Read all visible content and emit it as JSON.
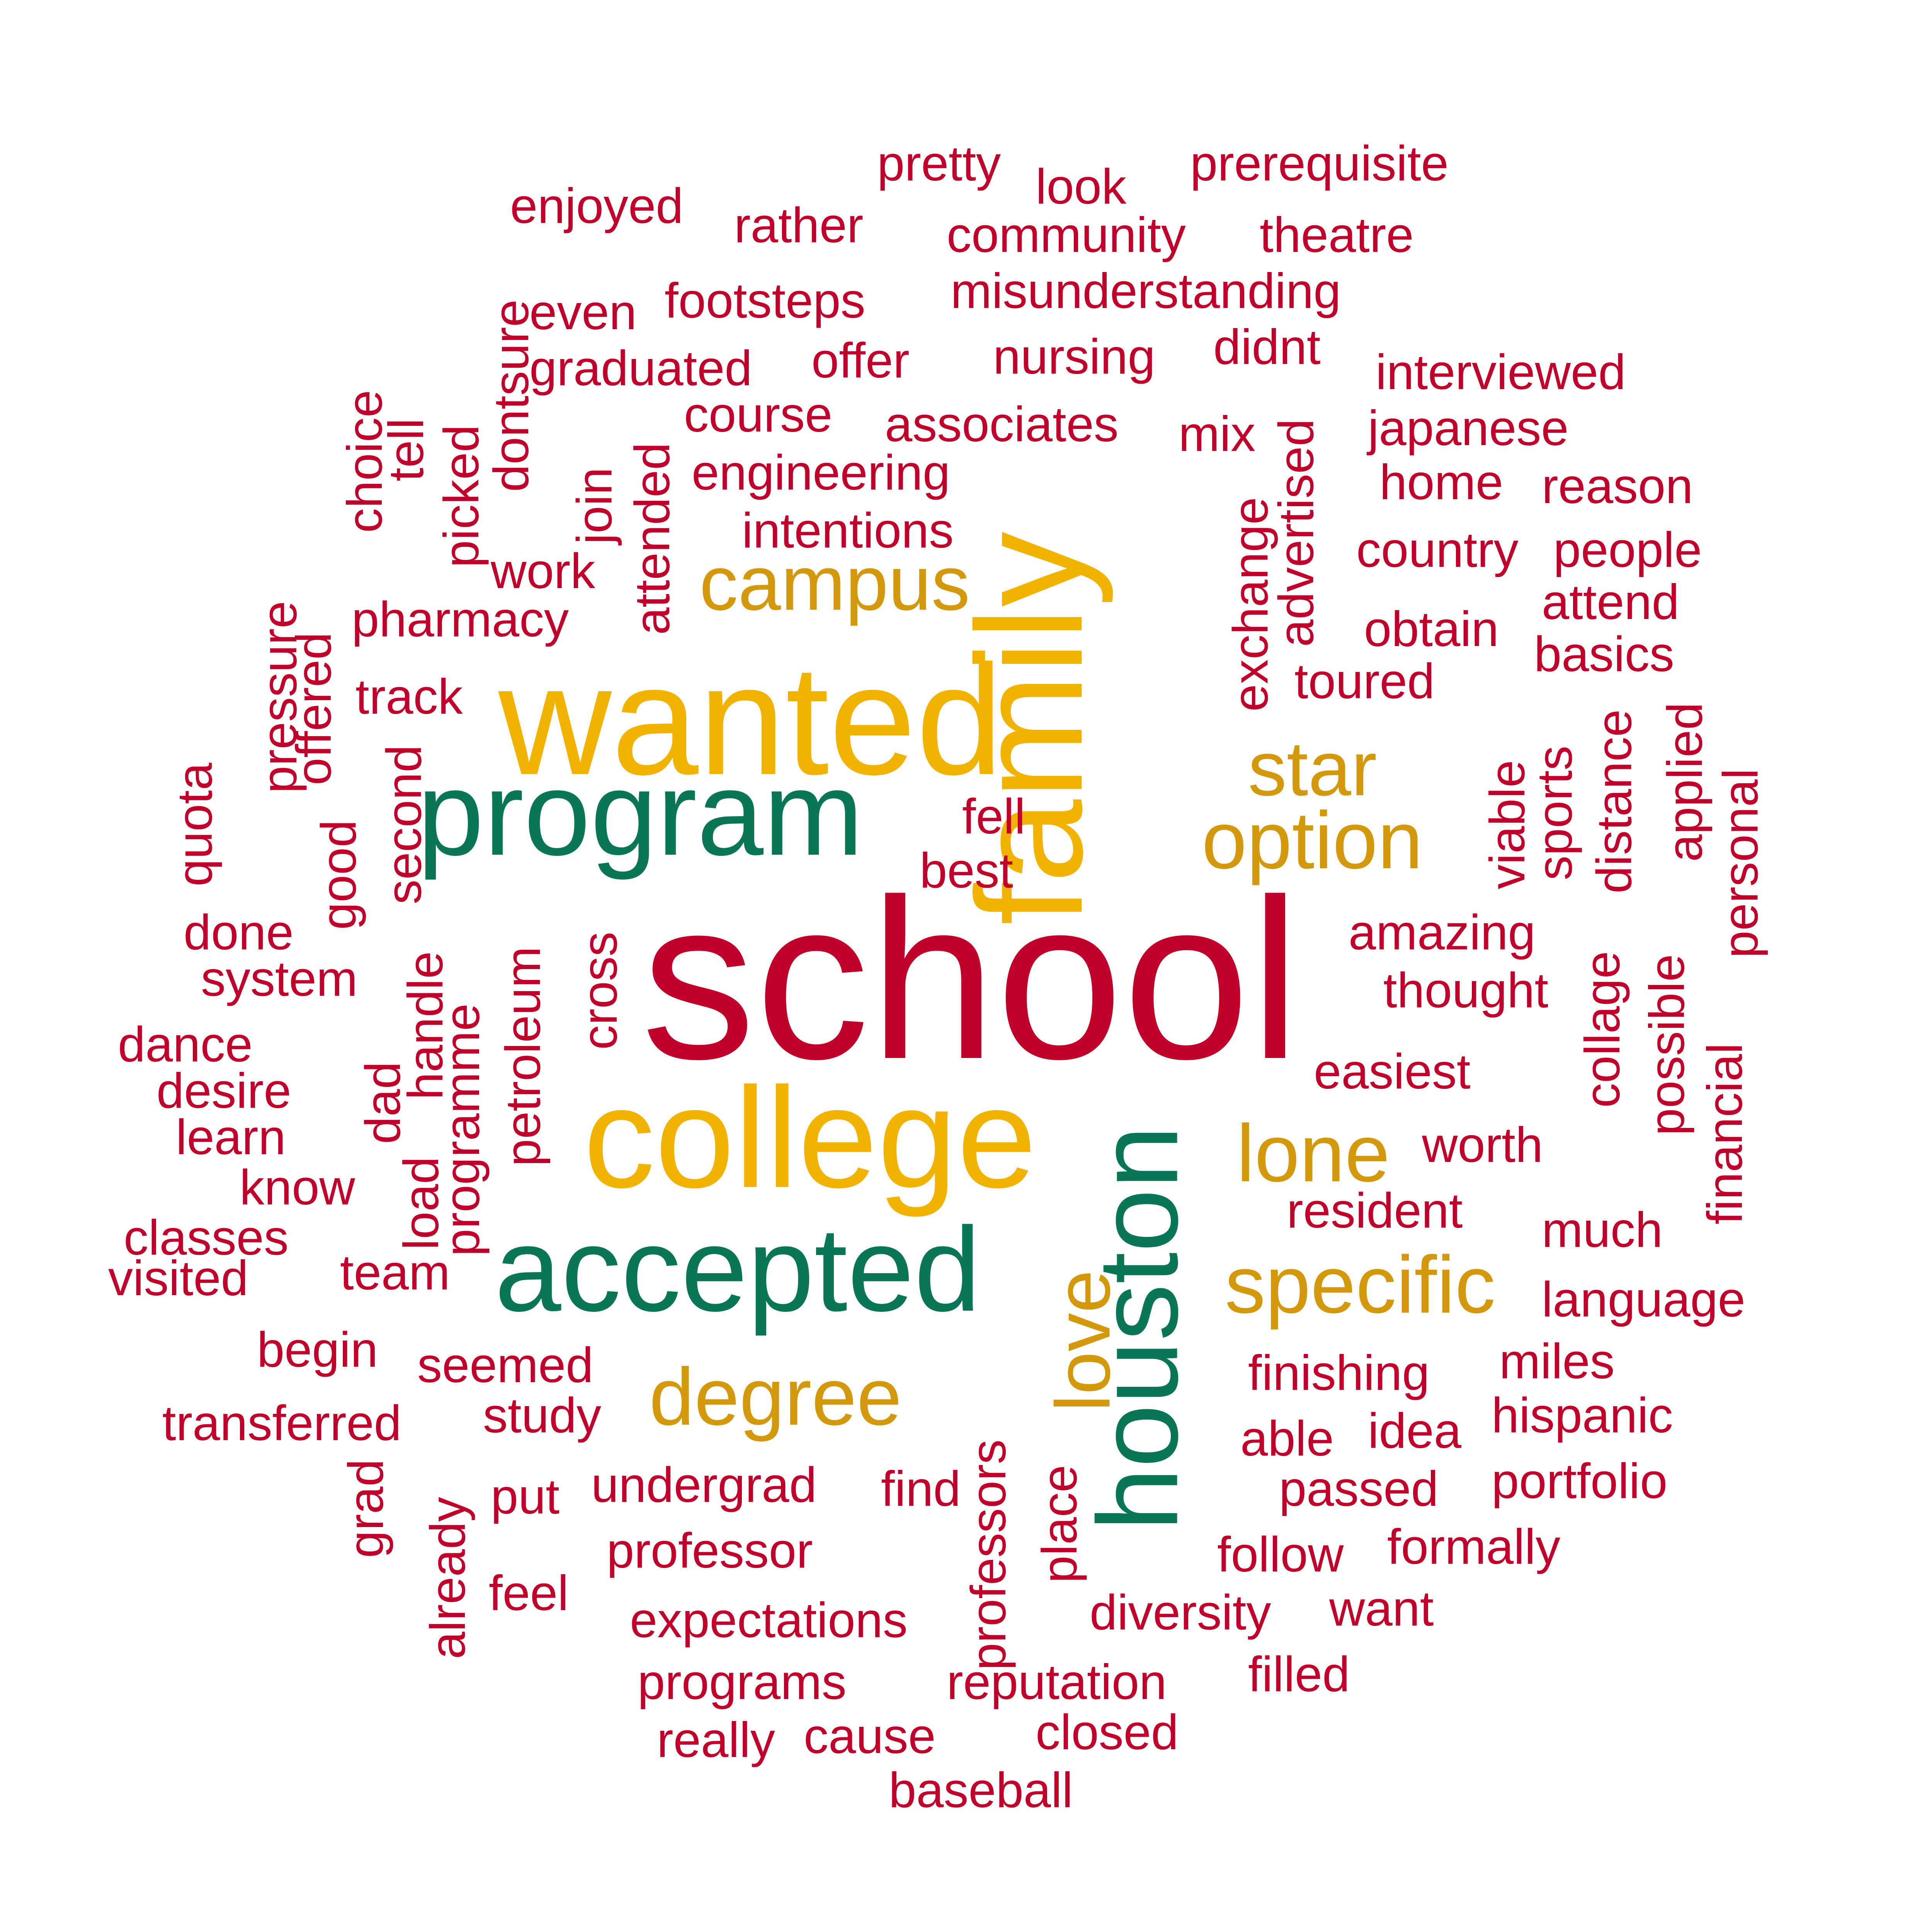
{
  "palette": {
    "red": "#c0002b",
    "yellow": "#f2b300",
    "green": "#0a7657",
    "gold": "#d3980b",
    "background": "#ffffff"
  },
  "words": [
    {
      "text": "school",
      "color": "red",
      "orientation": "horizontal"
    },
    {
      "text": "wanted",
      "color": "yellow",
      "orientation": "horizontal"
    },
    {
      "text": "college",
      "color": "yellow",
      "orientation": "horizontal"
    },
    {
      "text": "family",
      "color": "yellow",
      "orientation": "vertical"
    },
    {
      "text": "program",
      "color": "green",
      "orientation": "horizontal"
    },
    {
      "text": "accepted",
      "color": "green",
      "orientation": "horizontal"
    },
    {
      "text": "houston",
      "color": "green",
      "orientation": "vertical"
    },
    {
      "text": "campus",
      "color": "gold",
      "orientation": "horizontal"
    },
    {
      "text": "star",
      "color": "gold",
      "orientation": "horizontal"
    },
    {
      "text": "option",
      "color": "gold",
      "orientation": "horizontal"
    },
    {
      "text": "lone",
      "color": "gold",
      "orientation": "horizontal"
    },
    {
      "text": "specific",
      "color": "gold",
      "orientation": "horizontal"
    },
    {
      "text": "degree",
      "color": "gold",
      "orientation": "horizontal"
    },
    {
      "text": "love",
      "color": "gold",
      "orientation": "vertical"
    },
    {
      "text": "pretty",
      "color": "red",
      "orientation": "horizontal"
    },
    {
      "text": "look",
      "color": "red",
      "orientation": "horizontal"
    },
    {
      "text": "prerequisite",
      "color": "red",
      "orientation": "horizontal"
    },
    {
      "text": "enjoyed",
      "color": "red",
      "orientation": "horizontal"
    },
    {
      "text": "rather",
      "color": "red",
      "orientation": "horizontal"
    },
    {
      "text": "community",
      "color": "red",
      "orientation": "horizontal"
    },
    {
      "text": "theatre",
      "color": "red",
      "orientation": "horizontal"
    },
    {
      "text": "even",
      "color": "red",
      "orientation": "horizontal"
    },
    {
      "text": "footsteps",
      "color": "red",
      "orientation": "horizontal"
    },
    {
      "text": "misunderstanding",
      "color": "red",
      "orientation": "horizontal"
    },
    {
      "text": "dontsure",
      "color": "red",
      "orientation": "vertical"
    },
    {
      "text": "graduated",
      "color": "red",
      "orientation": "horizontal"
    },
    {
      "text": "offer",
      "color": "red",
      "orientation": "horizontal"
    },
    {
      "text": "nursing",
      "color": "red",
      "orientation": "horizontal"
    },
    {
      "text": "didnt",
      "color": "red",
      "orientation": "horizontal"
    },
    {
      "text": "interviewed",
      "color": "red",
      "orientation": "horizontal"
    },
    {
      "text": "choice",
      "color": "red",
      "orientation": "vertical"
    },
    {
      "text": "tell",
      "color": "red",
      "orientation": "vertical"
    },
    {
      "text": "picked",
      "color": "red",
      "orientation": "vertical"
    },
    {
      "text": "course",
      "color": "red",
      "orientation": "horizontal"
    },
    {
      "text": "associates",
      "color": "red",
      "orientation": "horizontal"
    },
    {
      "text": "mix",
      "color": "red",
      "orientation": "horizontal"
    },
    {
      "text": "japanese",
      "color": "red",
      "orientation": "horizontal"
    },
    {
      "text": "join",
      "color": "red",
      "orientation": "vertical"
    },
    {
      "text": "attended",
      "color": "red",
      "orientation": "vertical"
    },
    {
      "text": "engineering",
      "color": "red",
      "orientation": "horizontal"
    },
    {
      "text": "exchange",
      "color": "red",
      "orientation": "vertical"
    },
    {
      "text": "advertised",
      "color": "red",
      "orientation": "vertical"
    },
    {
      "text": "home",
      "color": "red",
      "orientation": "horizontal"
    },
    {
      "text": "reason",
      "color": "red",
      "orientation": "horizontal"
    },
    {
      "text": "intentions",
      "color": "red",
      "orientation": "horizontal"
    },
    {
      "text": "country",
      "color": "red",
      "orientation": "horizontal"
    },
    {
      "text": "people",
      "color": "red",
      "orientation": "horizontal"
    },
    {
      "text": "work",
      "color": "red",
      "orientation": "horizontal"
    },
    {
      "text": "pressure",
      "color": "red",
      "orientation": "vertical"
    },
    {
      "text": "good",
      "color": "red",
      "orientation": "vertical"
    },
    {
      "text": "offered",
      "color": "red",
      "orientation": "vertical"
    },
    {
      "text": "pharmacy",
      "color": "red",
      "orientation": "horizontal"
    },
    {
      "text": "attend",
      "color": "red",
      "orientation": "horizontal"
    },
    {
      "text": "obtain",
      "color": "red",
      "orientation": "horizontal"
    },
    {
      "text": "basics",
      "color": "red",
      "orientation": "horizontal"
    },
    {
      "text": "track",
      "color": "red",
      "orientation": "horizontal"
    },
    {
      "text": "toured",
      "color": "red",
      "orientation": "horizontal"
    },
    {
      "text": "quota",
      "color": "red",
      "orientation": "vertical"
    },
    {
      "text": "second",
      "color": "red",
      "orientation": "vertical"
    },
    {
      "text": "viable",
      "color": "red",
      "orientation": "vertical"
    },
    {
      "text": "sports",
      "color": "red",
      "orientation": "vertical"
    },
    {
      "text": "distance",
      "color": "red",
      "orientation": "vertical"
    },
    {
      "text": "applied",
      "color": "red",
      "orientation": "vertical"
    },
    {
      "text": "personal",
      "color": "red",
      "orientation": "vertical"
    },
    {
      "text": "fell",
      "color": "red",
      "orientation": "horizontal"
    },
    {
      "text": "best",
      "color": "red",
      "orientation": "horizontal"
    },
    {
      "text": "done",
      "color": "red",
      "orientation": "horizontal"
    },
    {
      "text": "system",
      "color": "red",
      "orientation": "horizontal"
    },
    {
      "text": "cross",
      "color": "red",
      "orientation": "vertical"
    },
    {
      "text": "petroleum",
      "color": "red",
      "orientation": "vertical"
    },
    {
      "text": "programme",
      "color": "red",
      "orientation": "vertical"
    },
    {
      "text": "handle",
      "color": "red",
      "orientation": "vertical"
    },
    {
      "text": "load",
      "color": "red",
      "orientation": "vertical"
    },
    {
      "text": "dad",
      "color": "red",
      "orientation": "vertical"
    },
    {
      "text": "amazing",
      "color": "red",
      "orientation": "horizontal"
    },
    {
      "text": "thought",
      "color": "red",
      "orientation": "horizontal"
    },
    {
      "text": "collage",
      "color": "red",
      "orientation": "vertical"
    },
    {
      "text": "possible",
      "color": "red",
      "orientation": "vertical"
    },
    {
      "text": "financial",
      "color": "red",
      "orientation": "vertical"
    },
    {
      "text": "dance",
      "color": "red",
      "orientation": "horizontal"
    },
    {
      "text": "desire",
      "color": "red",
      "orientation": "horizontal"
    },
    {
      "text": "learn",
      "color": "red",
      "orientation": "horizontal"
    },
    {
      "text": "know",
      "color": "red",
      "orientation": "horizontal"
    },
    {
      "text": "easiest",
      "color": "red",
      "orientation": "horizontal"
    },
    {
      "text": "worth",
      "color": "red",
      "orientation": "horizontal"
    },
    {
      "text": "resident",
      "color": "red",
      "orientation": "horizontal"
    },
    {
      "text": "classes",
      "color": "red",
      "orientation": "horizontal"
    },
    {
      "text": "visited",
      "color": "red",
      "orientation": "horizontal"
    },
    {
      "text": "team",
      "color": "red",
      "orientation": "horizontal"
    },
    {
      "text": "much",
      "color": "red",
      "orientation": "horizontal"
    },
    {
      "text": "language",
      "color": "red",
      "orientation": "horizontal"
    },
    {
      "text": "begin",
      "color": "red",
      "orientation": "horizontal"
    },
    {
      "text": "seemed",
      "color": "red",
      "orientation": "horizontal"
    },
    {
      "text": "finishing",
      "color": "red",
      "orientation": "horizontal"
    },
    {
      "text": "miles",
      "color": "red",
      "orientation": "horizontal"
    },
    {
      "text": "transferred",
      "color": "red",
      "orientation": "horizontal"
    },
    {
      "text": "study",
      "color": "red",
      "orientation": "horizontal"
    },
    {
      "text": "professors",
      "color": "red",
      "orientation": "vertical"
    },
    {
      "text": "able",
      "color": "red",
      "orientation": "horizontal"
    },
    {
      "text": "idea",
      "color": "red",
      "orientation": "horizontal"
    },
    {
      "text": "hispanic",
      "color": "red",
      "orientation": "horizontal"
    },
    {
      "text": "grad",
      "color": "red",
      "orientation": "vertical"
    },
    {
      "text": "already",
      "color": "red",
      "orientation": "vertical"
    },
    {
      "text": "put",
      "color": "red",
      "orientation": "horizontal"
    },
    {
      "text": "undergrad",
      "color": "red",
      "orientation": "horizontal"
    },
    {
      "text": "find",
      "color": "red",
      "orientation": "horizontal"
    },
    {
      "text": "place",
      "color": "red",
      "orientation": "vertical"
    },
    {
      "text": "passed",
      "color": "red",
      "orientation": "horizontal"
    },
    {
      "text": "portfolio",
      "color": "red",
      "orientation": "horizontal"
    },
    {
      "text": "professor",
      "color": "red",
      "orientation": "horizontal"
    },
    {
      "text": "follow",
      "color": "red",
      "orientation": "horizontal"
    },
    {
      "text": "formally",
      "color": "red",
      "orientation": "horizontal"
    },
    {
      "text": "feel",
      "color": "red",
      "orientation": "horizontal"
    },
    {
      "text": "expectations",
      "color": "red",
      "orientation": "horizontal"
    },
    {
      "text": "diversity",
      "color": "red",
      "orientation": "horizontal"
    },
    {
      "text": "want",
      "color": "red",
      "orientation": "horizontal"
    },
    {
      "text": "programs",
      "color": "red",
      "orientation": "horizontal"
    },
    {
      "text": "reputation",
      "color": "red",
      "orientation": "horizontal"
    },
    {
      "text": "filled",
      "color": "red",
      "orientation": "horizontal"
    },
    {
      "text": "really",
      "color": "red",
      "orientation": "horizontal"
    },
    {
      "text": "cause",
      "color": "red",
      "orientation": "horizontal"
    },
    {
      "text": "closed",
      "color": "red",
      "orientation": "horizontal"
    },
    {
      "text": "baseball",
      "color": "red",
      "orientation": "horizontal"
    }
  ]
}
